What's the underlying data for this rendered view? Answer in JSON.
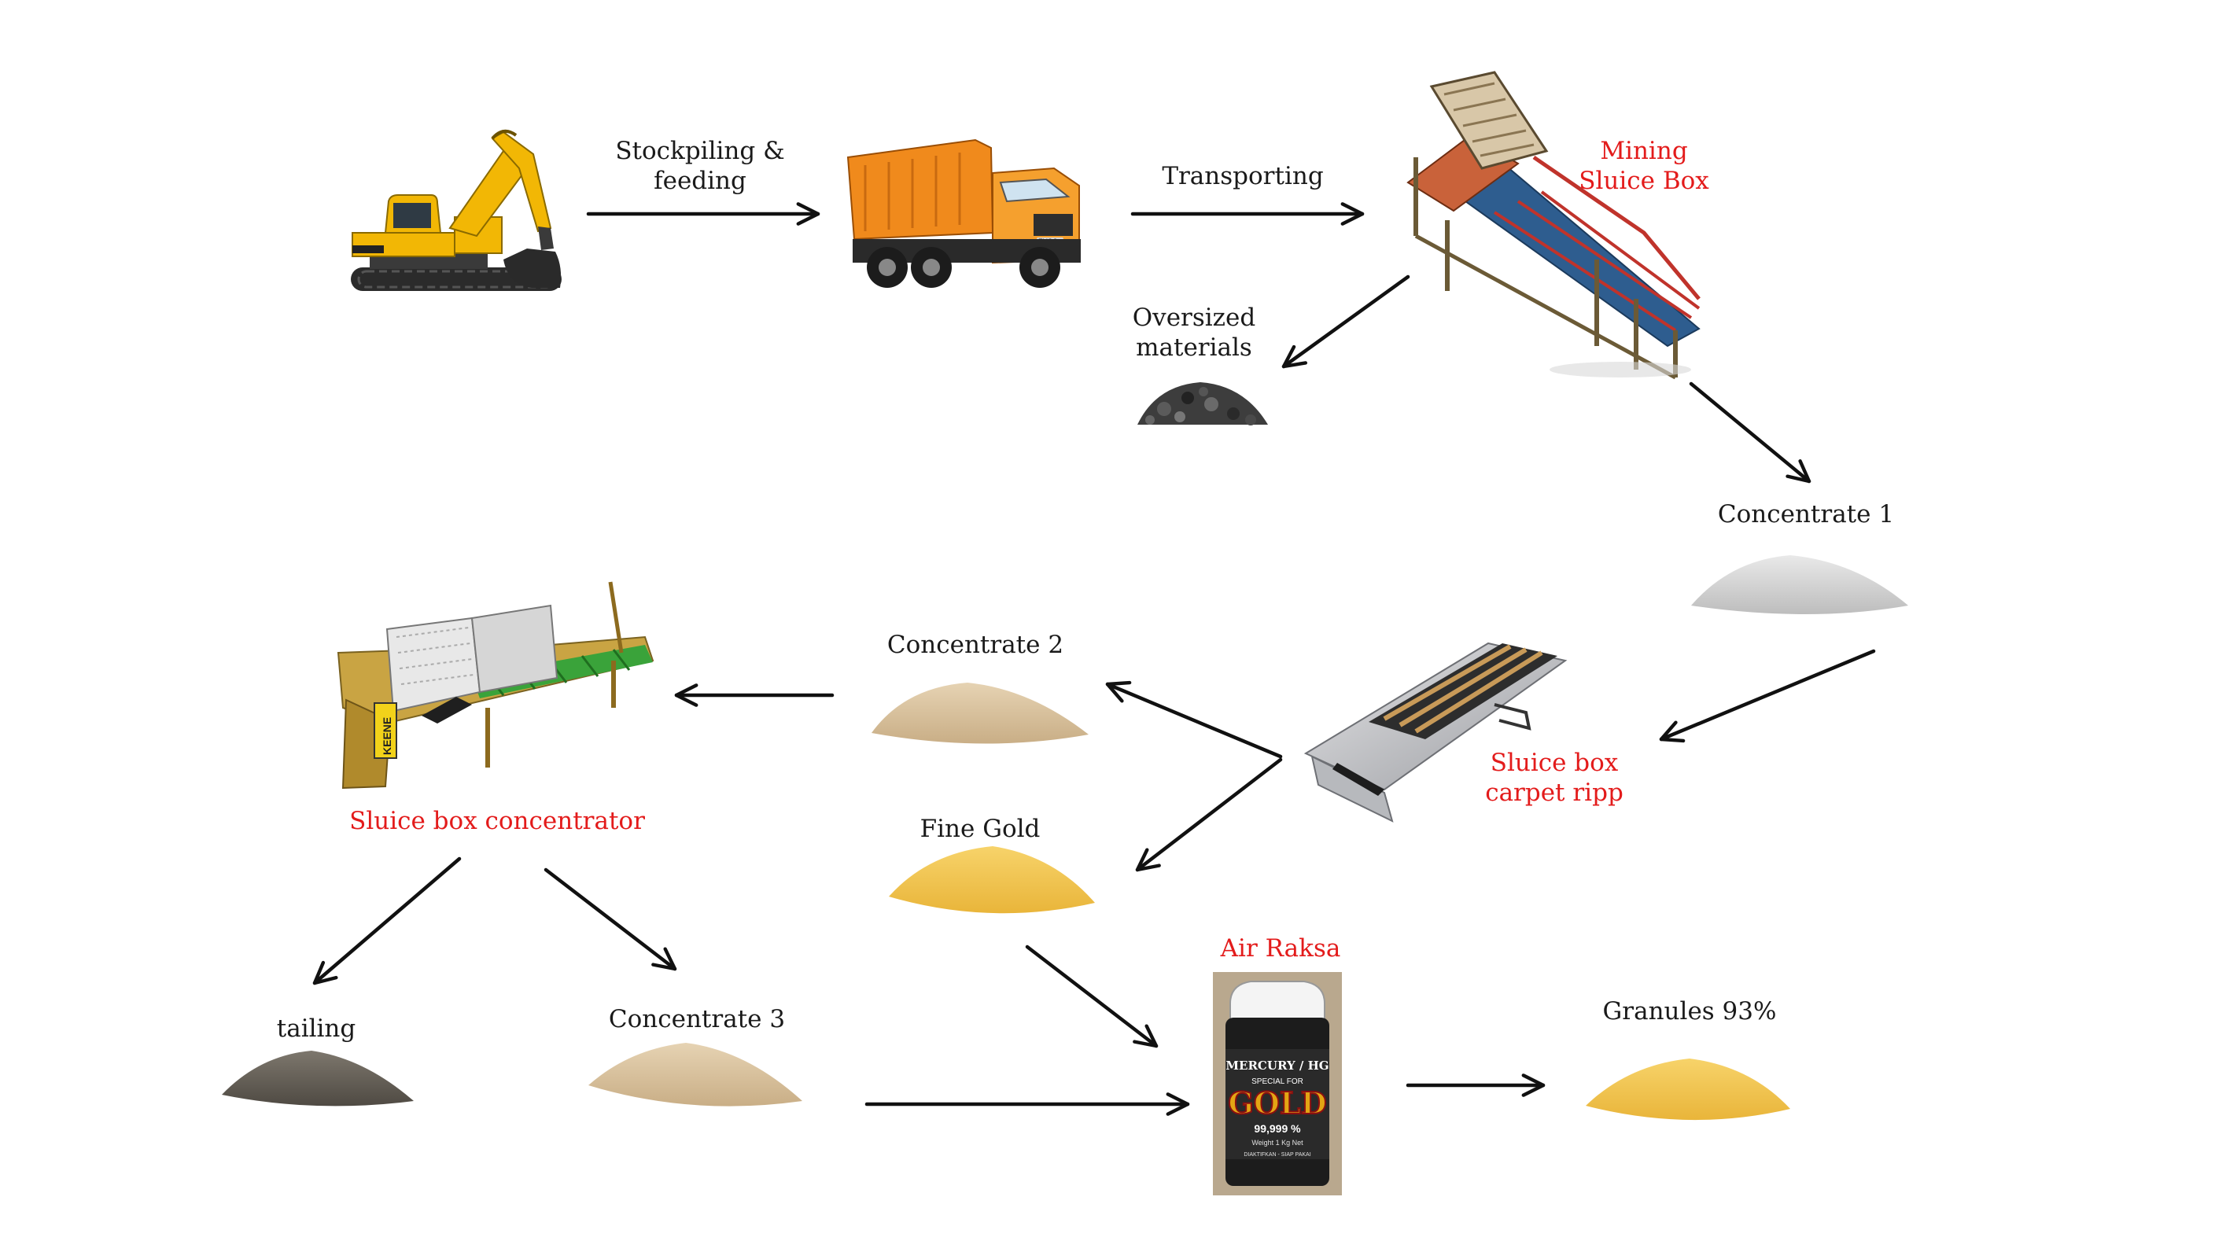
{
  "colors": {
    "process_label": "#e31b1b",
    "text": "#1a1a1a",
    "arrow": "#111111",
    "excavator": "#f2b705",
    "truck": "#f08a1c",
    "sluice_blue": "#2e5d8f",
    "gold_sand": "#f5c850",
    "concentrate_sand": "#d9c3a0",
    "white_sand": "#d7d7d7",
    "tailing": "#6d6860"
  },
  "icons": {
    "excavator": "excavator-icon",
    "truck": "dump-truck-icon",
    "mining_sluice": "mining-sluice-box-icon",
    "rocks": "oversized-rocks-icon",
    "carpet_sluice": "sluice-box-carpet-icon",
    "concentrator": "sluice-box-concentrator-icon",
    "mercury": "mercury-bottle-icon"
  },
  "labels": {
    "stockpiling_line1": "Stockpiling &",
    "stockpiling_line2": "feeding",
    "transporting": "Transporting",
    "mining_line1": "Mining",
    "mining_line2": "Sluice Box",
    "oversized_line1": "Oversized",
    "oversized_line2": "materials",
    "concentrate1": "Concentrate 1",
    "concentrate2": "Concentrate 2",
    "fine_gold": "Fine Gold",
    "carpet_line1": "Sluice box",
    "carpet_line2": "carpet ripp",
    "concentrator": "Sluice box concentrator",
    "tailing": "tailing",
    "concentrate3": "Concentrate 3",
    "air_raksa": "Air Raksa",
    "granules": "Granules 93%"
  },
  "bottle": {
    "line1": "MERCURY / HG",
    "line2": "SPECIAL FOR",
    "brand": "GOLD",
    "purity": "99,999 %",
    "weight": "Weight 1 Kg Net",
    "note": "DIAKTIFKAN - SIAP PAKAI"
  },
  "concentrator_tag": "KEENE"
}
